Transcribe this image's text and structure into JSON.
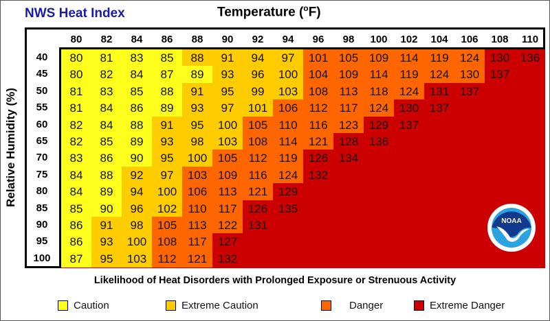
{
  "title": "NWS Heat Index",
  "chart_data": {
    "type": "heatmap",
    "title": "NWS Heat Index",
    "xlabel": "Temperature (°F)",
    "xlabel_main": "Temperature (",
    "xlabel_sup": "o",
    "xlabel_end": "F)",
    "ylabel": "Relative Humidity (%)",
    "x": [
      "80",
      "82",
      "84",
      "86",
      "88",
      "90",
      "92",
      "94",
      "96",
      "98",
      "100",
      "102",
      "104",
      "106",
      "108",
      "110"
    ],
    "y": [
      "40",
      "45",
      "50",
      "55",
      "60",
      "65",
      "70",
      "75",
      "80",
      "85",
      "90",
      "95",
      "100"
    ],
    "values": [
      [
        80,
        81,
        83,
        85,
        88,
        91,
        94,
        97,
        101,
        105,
        109,
        114,
        119,
        124,
        130,
        136
      ],
      [
        80,
        82,
        84,
        87,
        89,
        93,
        96,
        100,
        104,
        109,
        114,
        119,
        124,
        130,
        137
      ],
      [
        81,
        83,
        85,
        88,
        91,
        95,
        99,
        103,
        108,
        113,
        118,
        124,
        131,
        137
      ],
      [
        81,
        84,
        86,
        89,
        93,
        97,
        101,
        106,
        112,
        117,
        124,
        130,
        137
      ],
      [
        82,
        84,
        88,
        91,
        95,
        100,
        105,
        110,
        116,
        123,
        129,
        137
      ],
      [
        82,
        85,
        89,
        93,
        98,
        103,
        108,
        114,
        121,
        128,
        136
      ],
      [
        83,
        86,
        90,
        95,
        100,
        105,
        112,
        119,
        126,
        134
      ],
      [
        84,
        88,
        92,
        97,
        103,
        109,
        116,
        124,
        132
      ],
      [
        84,
        89,
        94,
        100,
        106,
        113,
        121,
        129
      ],
      [
        85,
        90,
        96,
        102,
        110,
        117,
        126,
        135
      ],
      [
        86,
        91,
        98,
        105,
        113,
        122,
        131
      ],
      [
        86,
        93,
        100,
        108,
        117,
        127
      ],
      [
        87,
        95,
        103,
        112,
        121,
        132
      ]
    ],
    "level_codes": [
      "cccceeeeddddddxx",
      "ccccceeeddddddxx",
      "cccceeeeddddxx",
      "cccceeeddddxx",
      "ccceeeddddxx",
      "ccceeedddxx",
      "ccceedddxx",
      "cceeddddx",
      "cceedddx",
      "cceeddxx",
      "ceedddx",
      "ceeddx",
      "ceeddx"
    ],
    "legend": [
      {
        "code": "c",
        "label": "Caution",
        "color": "#ffff1e"
      },
      {
        "code": "e",
        "label": "Extreme Caution",
        "color": "#ffcc00"
      },
      {
        "code": "d",
        "label": "Danger",
        "color": "#ff6600"
      },
      {
        "code": "x",
        "label": "Extreme Danger",
        "color": "#cc0000"
      }
    ],
    "legend_position": "bottom",
    "footer": "Likelihood of Heat Disorders with Prolonged Exposure or Strenuous Activity"
  },
  "logo": {
    "text": "NOAA"
  }
}
